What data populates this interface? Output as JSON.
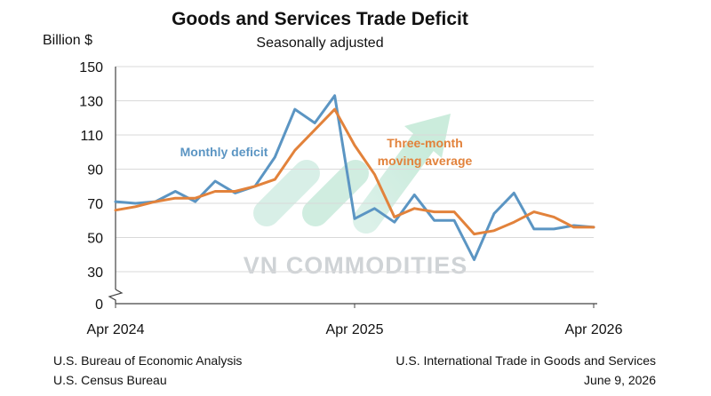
{
  "header": {
    "title": "Goods and Services Trade Deficit",
    "subtitle": "Seasonally adjusted",
    "unit_label": "Billion $"
  },
  "footer": {
    "left": [
      "U.S. Bureau of Economic Analysis",
      "U.S. Census Bureau"
    ],
    "right": [
      "U.S. International Trade in Goods and Services",
      "June 9, 2026"
    ]
  },
  "watermark": "VN COMMODITIES",
  "colors": {
    "monthly": "#5b95c3",
    "average": "#e2823b",
    "axis": "#444444",
    "grid": "#d9d9d9"
  },
  "chart_data": {
    "type": "line",
    "title": "Goods and Services Trade Deficit",
    "subtitle": "Seasonally adjusted",
    "ylabel": "Billion $",
    "ylim": [
      0,
      150
    ],
    "y_ticks": [
      0,
      30,
      50,
      70,
      90,
      110,
      130,
      150
    ],
    "y_axis_break": true,
    "grid": "horizontal",
    "x_tick_labels": [
      {
        "label": "Apr 2024",
        "index": 0
      },
      {
        "label": "Apr 2025",
        "index": 12
      },
      {
        "label": "Apr 2026",
        "index": 24
      }
    ],
    "x": [
      "Apr 2024",
      "May 2024",
      "Jun 2024",
      "Jul 2024",
      "Aug 2024",
      "Sep 2024",
      "Oct 2024",
      "Nov 2024",
      "Dec 2024",
      "Jan 2025",
      "Feb 2025",
      "Mar 2025",
      "Apr 2025",
      "May 2025",
      "Jun 2025",
      "Jul 2025",
      "Aug 2025",
      "Sep 2025",
      "Oct 2025",
      "Nov 2025",
      "Dec 2025",
      "Jan 2026",
      "Feb 2026",
      "Mar 2026",
      "Apr 2026"
    ],
    "series": [
      {
        "name": "Monthly deficit",
        "values": [
          71,
          70,
          71,
          77,
          71,
          83,
          76,
          80,
          97,
          125,
          117,
          133,
          61,
          67,
          59,
          75,
          60,
          60,
          37,
          64,
          76,
          55,
          55,
          57,
          56
        ]
      },
      {
        "name": "Three-month moving average",
        "values": [
          66,
          68,
          71,
          73,
          73,
          77,
          77,
          80,
          84,
          101,
          113,
          125,
          104,
          87,
          62,
          67,
          65,
          65,
          52,
          54,
          59,
          65,
          62,
          56,
          56
        ]
      }
    ],
    "annotations": [
      {
        "text": "Monthly deficit",
        "series": "Monthly deficit"
      },
      {
        "text": "Three-month",
        "series": "Three-month moving average"
      },
      {
        "text": "moving average",
        "series": "Three-month moving average"
      }
    ]
  }
}
